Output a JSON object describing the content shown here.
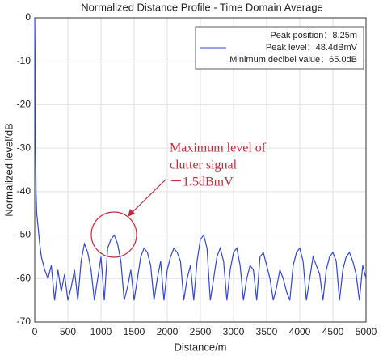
{
  "chart_data": {
    "type": "line",
    "title": "Normalized Distance Profile - Time Domain Average",
    "x_label": "Distance/m",
    "y_label": "Normalized level/dB",
    "legend_notes": [
      "Peak position：8.25m",
      "Minimum decibel value：65.0dB"
    ],
    "annotation": [
      "Maximum level of",
      "clutter signal",
      "－1.5dBmV"
    ],
    "x": [
      0,
      5,
      10,
      20,
      30,
      50,
      75,
      100,
      150,
      200,
      250,
      300,
      350,
      400,
      450,
      500,
      550,
      600,
      650,
      700,
      750,
      800,
      850,
      900,
      950,
      1000,
      1050,
      1100,
      1150,
      1200,
      1250,
      1300,
      1350,
      1400,
      1450,
      1500,
      1550,
      1600,
      1650,
      1700,
      1750,
      1800,
      1850,
      1900,
      1950,
      2000,
      2050,
      2100,
      2150,
      2200,
      2250,
      2300,
      2350,
      2400,
      2450,
      2500,
      2550,
      2600,
      2650,
      2700,
      2750,
      2800,
      2850,
      2900,
      2950,
      3000,
      3050,
      3100,
      3150,
      3200,
      3250,
      3300,
      3350,
      3400,
      3450,
      3500,
      3550,
      3600,
      3650,
      3700,
      3750,
      3800,
      3850,
      3900,
      3950,
      4000,
      4050,
      4100,
      4150,
      4200,
      4250,
      4300,
      4350,
      4400,
      4450,
      4500,
      4550,
      4600,
      4650,
      4700,
      4750,
      4800,
      4850,
      4900,
      4950,
      5000
    ],
    "series": [
      {
        "name": "Peak level：48.4dBmV",
        "color": "#3346d8",
        "values": [
          0,
          -8,
          -25,
          -40,
          -45,
          -48,
          -52,
          -55,
          -58,
          -60,
          -57,
          -65,
          -58,
          -63,
          -59,
          -65,
          -62,
          -58,
          -65,
          -56,
          -52,
          -54,
          -58,
          -65,
          -60,
          -55,
          -65,
          -53,
          -51,
          -50,
          -52,
          -56,
          -65,
          -62,
          -58,
          -65,
          -60,
          -55,
          -53,
          -54,
          -57,
          -65,
          -60,
          -56,
          -65,
          -58,
          -55,
          -53,
          -54,
          -56,
          -65,
          -60,
          -57,
          -65,
          -56,
          -51,
          -50,
          -53,
          -65,
          -60,
          -55,
          -53,
          -56,
          -65,
          -58,
          -54,
          -53,
          -57,
          -65,
          -60,
          -57,
          -58,
          -65,
          -55,
          -54,
          -57,
          -60,
          -65,
          -62,
          -58,
          -60,
          -63,
          -65,
          -57,
          -54,
          -53,
          -56,
          -65,
          -60,
          -55,
          -57,
          -59,
          -65,
          -58,
          -55,
          -54,
          -56,
          -65,
          -58,
          -55,
          -54,
          -56,
          -59,
          -65,
          -57,
          -60
        ]
      }
    ],
    "xlim": [
      0,
      5000
    ],
    "ylim": [
      -70,
      0
    ],
    "xticks": [
      0,
      500,
      1000,
      1500,
      2000,
      2500,
      3000,
      3500,
      4000,
      4500,
      5000
    ],
    "yticks": [
      0,
      -10,
      -20,
      -30,
      -40,
      -50,
      -60,
      -70
    ],
    "grid": true
  }
}
